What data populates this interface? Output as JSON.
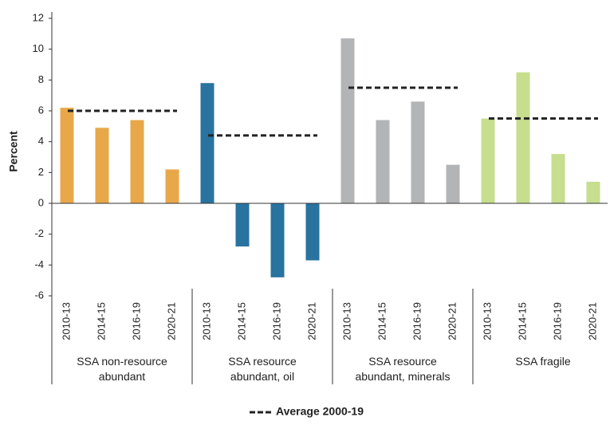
{
  "chart_data": {
    "type": "bar",
    "y_label": "Percent",
    "categories": [
      "2010-13",
      "2014-15",
      "2016-19",
      "2020-21"
    ],
    "groups": [
      {
        "name": "SSA non-resource\nabundant",
        "color": "#e8a84a",
        "values": [
          6.2,
          4.9,
          5.4,
          2.2
        ],
        "average": 6.0
      },
      {
        "name": "SSA resource\nabundant, oil",
        "color": "#2873a0",
        "values": [
          7.8,
          -2.8,
          -4.8,
          -3.7
        ],
        "average": 4.4
      },
      {
        "name": "SSA resource\nabundant, minerals",
        "color": "#b2b4b6",
        "values": [
          10.7,
          5.4,
          6.6,
          2.5
        ],
        "average": 7.5
      },
      {
        "name": "SSA fragile",
        "color": "#c6de8e",
        "values": [
          5.5,
          8.5,
          3.2,
          1.4
        ],
        "average": 5.5
      }
    ],
    "average_label": "Average 2000-19",
    "average_color": "#222222",
    "ylim": [
      -6,
      12
    ],
    "yticks": [
      -6,
      -4,
      -2,
      0,
      2,
      4,
      6,
      8,
      10,
      12
    ]
  }
}
